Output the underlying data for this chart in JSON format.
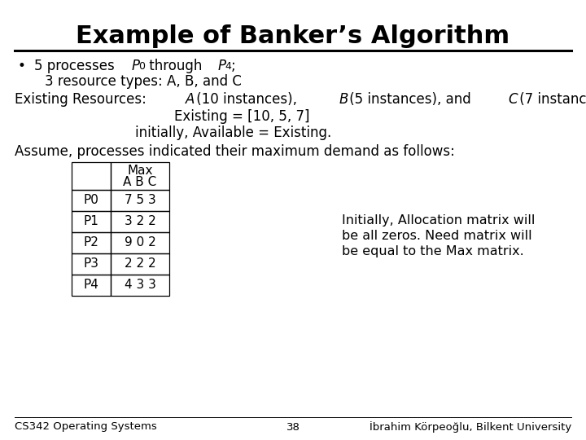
{
  "title": "Example of Banker’s Algorithm",
  "title_fontsize": 22,
  "title_fontweight": "bold",
  "bg_color": "#ffffff",
  "text_color": "#000000",
  "body_fontsize": 12,
  "table_fontsize": 11,
  "sidenote_fontsize": 11.5,
  "footer_fontsize": 9.5,
  "table_rows": [
    [
      "P0",
      "7 5 3"
    ],
    [
      "P1",
      "3 2 2"
    ],
    [
      "P2",
      "9 0 2"
    ],
    [
      "P3",
      "2 2 2"
    ],
    [
      "P4",
      "4 3 3"
    ]
  ],
  "table_header_row1": "Max",
  "table_header_row2": "A B C",
  "side_note_line1": "Initially, Allocation matrix will",
  "side_note_line2": "be all zeros. Need matrix will",
  "side_note_line3": "be equal to the Max matrix.",
  "footer_left": "CS342 Operating Systems",
  "footer_center": "38",
  "footer_right": "İbrahim Körpeoğlu, Bilkent University"
}
